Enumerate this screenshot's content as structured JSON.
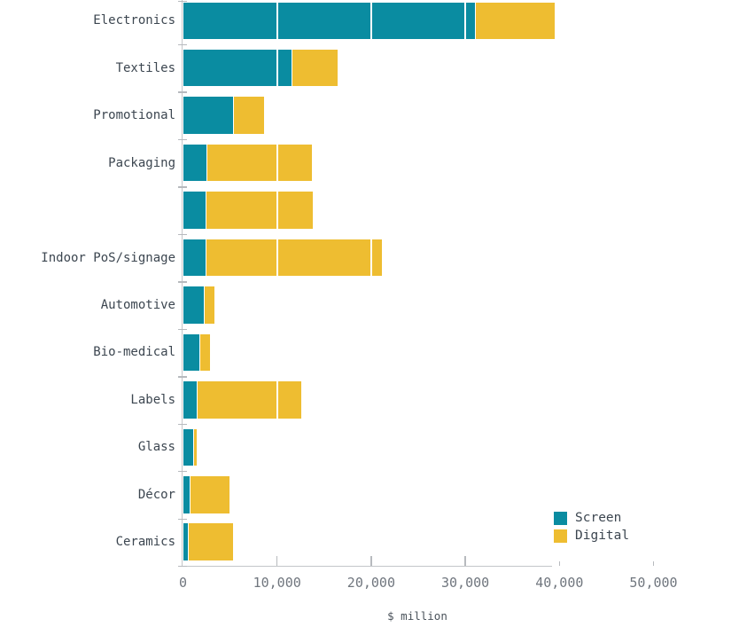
{
  "chart_data": {
    "type": "bar",
    "orientation": "horizontal",
    "stacked": true,
    "title": "",
    "xlabel": "$ million",
    "ylabel": "",
    "xlim": [
      0,
      50000
    ],
    "x_ticks": [
      0,
      10000,
      20000,
      30000,
      40000,
      50000
    ],
    "x_tick_labels": [
      "0",
      "10,000",
      "20,000",
      "30,000",
      "40,000",
      "50,000"
    ],
    "categories": [
      "Electronics",
      "Textiles",
      "Promotional",
      "Packaging",
      "",
      "Indoor PoS/signage",
      "Automotive",
      "Bio-medical",
      "Labels",
      "Glass",
      "Décor",
      "Ceramics"
    ],
    "series": [
      {
        "name": "Screen",
        "color": "#0a8ca1",
        "values": [
          31000,
          11500,
          5300,
          2500,
          2400,
          2400,
          2200,
          1700,
          1500,
          1100,
          700,
          500
        ]
      },
      {
        "name": "Digital",
        "color": "#eebd31",
        "values": [
          8500,
          4900,
          3300,
          11200,
          11400,
          18700,
          1100,
          1200,
          11100,
          400,
          4200,
          4800
        ]
      }
    ],
    "legend": {
      "position": "bottom-right",
      "entries": [
        "Screen",
        "Digital"
      ]
    },
    "grid": "white vertical gridlines drawn over bars at each x tick",
    "axis_line_color": "#c3c6c9"
  }
}
